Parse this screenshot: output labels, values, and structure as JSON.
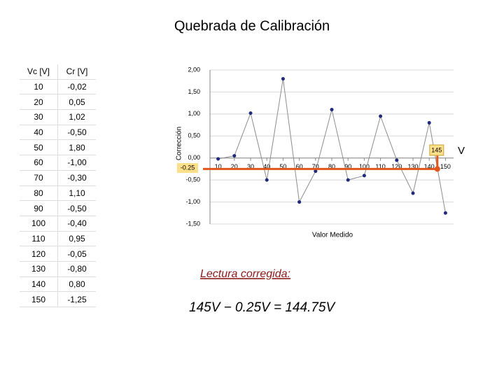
{
  "title": "Quebrada de Calibración",
  "table": {
    "header": [
      "Vc [V]",
      "Cr [V]"
    ],
    "rows": [
      [
        "10",
        "-0,02"
      ],
      [
        "20",
        "0,05"
      ],
      [
        "30",
        "1,02"
      ],
      [
        "40",
        "-0,50"
      ],
      [
        "50",
        "1,80"
      ],
      [
        "60",
        "-1,00"
      ],
      [
        "70",
        "-0,30"
      ],
      [
        "80",
        "1,10"
      ],
      [
        "90",
        "-0,50"
      ],
      [
        "100",
        "-0,40"
      ],
      [
        "110",
        "0,95"
      ],
      [
        "120",
        "-0,05"
      ],
      [
        "130",
        "-0,80"
      ],
      [
        "140",
        "0,80"
      ],
      [
        "150",
        "-1,25"
      ]
    ]
  },
  "chart_data": {
    "type": "line",
    "x_label": "Valor Medido",
    "y_label": "Corrección",
    "x": [
      10,
      20,
      30,
      40,
      50,
      60,
      70,
      80,
      90,
      100,
      110,
      120,
      130,
      140,
      150
    ],
    "values": [
      -0.02,
      0.05,
      1.02,
      -0.5,
      1.8,
      -1.0,
      -0.3,
      1.1,
      -0.5,
      -0.4,
      0.95,
      -0.05,
      -0.8,
      0.8,
      -1.25
    ],
    "color": "#1f2a7a",
    "line_color": "#8c8c8c",
    "xlim": [
      5,
      155
    ],
    "xticks": [
      10,
      20,
      30,
      40,
      50,
      60,
      70,
      80,
      90,
      100,
      110,
      120,
      130,
      140,
      150
    ],
    "ylim": [
      -1.5,
      2
    ],
    "yticks": [
      {
        "value": -1.5,
        "label": "-1,50"
      },
      {
        "value": -1,
        "label": "-1,00"
      },
      {
        "value": -0.5,
        "label": "-0,50"
      },
      {
        "value": 0,
        "label": "0,00"
      },
      {
        "value": 0.5,
        "label": "0,50"
      },
      {
        "value": 1,
        "label": "1,00"
      },
      {
        "value": 1.5,
        "label": "1,50"
      },
      {
        "value": 2,
        "label": "2,00"
      }
    ],
    "grid": true,
    "reading": {
      "x": 145,
      "y": -0.25,
      "unit": "V",
      "color": "#e0561b"
    }
  },
  "note": {
    "heading": "Lectura corregida:",
    "equation": "145V − 0.25V = 144.75V"
  }
}
